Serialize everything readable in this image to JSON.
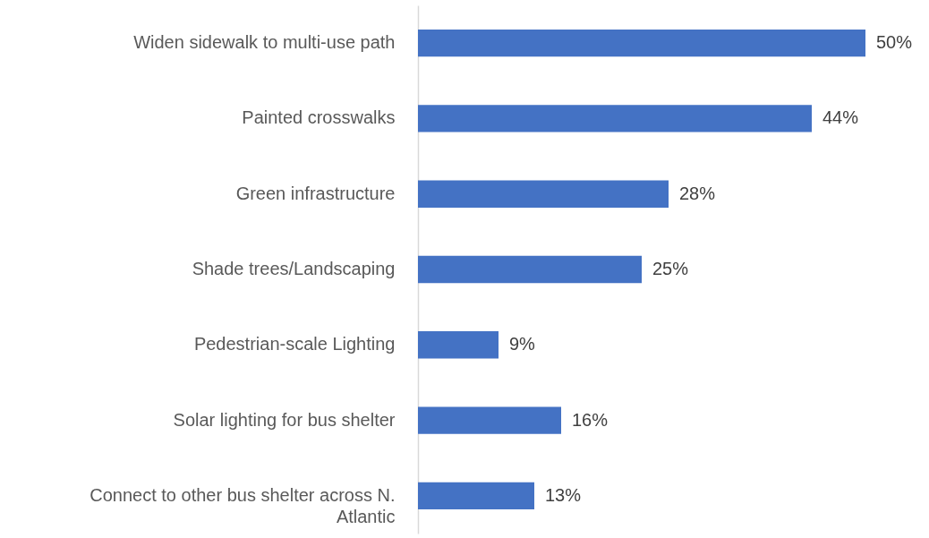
{
  "chart_data": {
    "type": "bar",
    "orientation": "horizontal",
    "tick_labels": "y",
    "categories": [
      "Widen sidewalk to multi-use path",
      "Painted crosswalks",
      "Green infrastructure",
      "Shade trees/Landscaping",
      "Pedestrian-scale Lighting",
      "Solar lighting for bus shelter",
      "Connect to other bus shelter across N. Atlantic"
    ],
    "values": [
      50,
      44,
      28,
      25,
      9,
      16,
      13
    ],
    "value_labels": [
      "50%",
      "44%",
      "28%",
      "25%",
      "9%",
      "16%",
      "13%"
    ],
    "color": "#4472c4"
  }
}
